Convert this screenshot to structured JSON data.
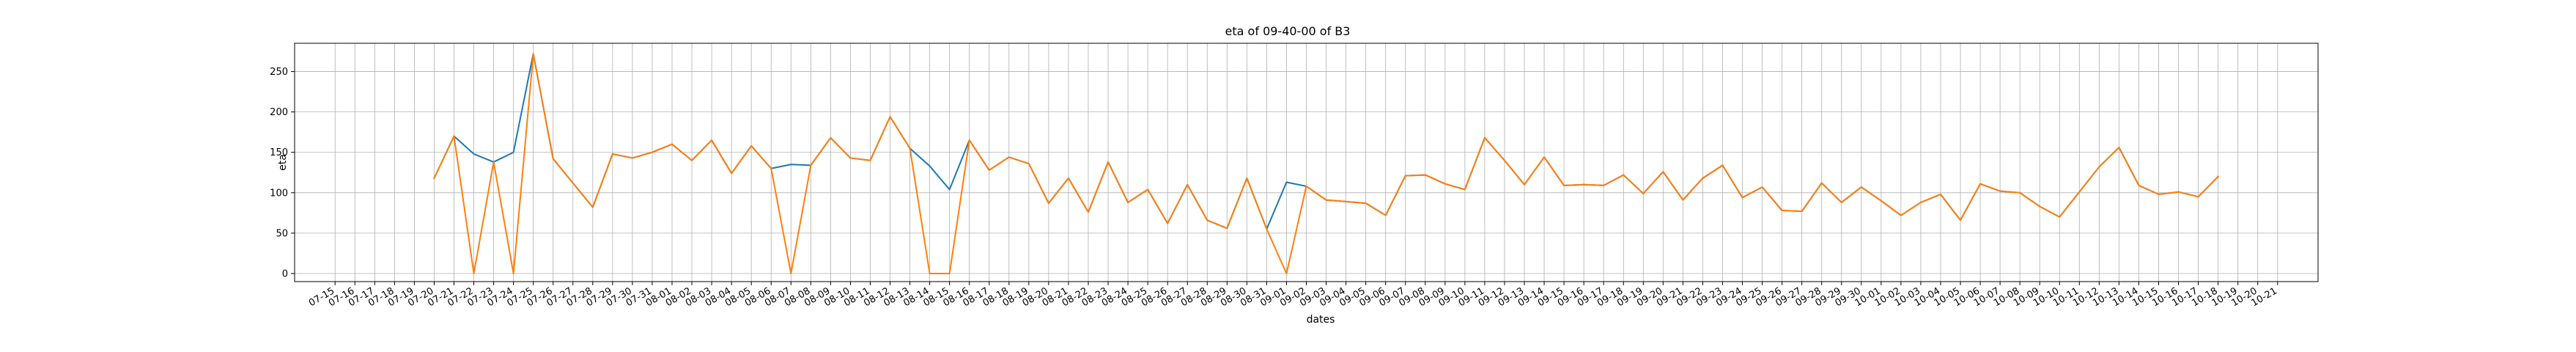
{
  "chart_data": {
    "type": "line",
    "title": "eta of 09-40-00 of B3",
    "xlabel": "dates",
    "ylabel": "eta",
    "ylim": [
      -10,
      285
    ],
    "yticks": [
      0,
      50,
      100,
      150,
      200,
      250
    ],
    "grid": true,
    "categories": [
      "07-15",
      "07-16",
      "07-17",
      "07-18",
      "07-19",
      "07-20",
      "07-21",
      "07-22",
      "07-23",
      "07-24",
      "07-25",
      "07-26",
      "07-27",
      "07-28",
      "07-29",
      "07-30",
      "07-31",
      "08-01",
      "08-02",
      "08-03",
      "08-04",
      "08-05",
      "08-06",
      "08-07",
      "08-08",
      "08-09",
      "08-10",
      "08-11",
      "08-12",
      "08-13",
      "08-14",
      "08-15",
      "08-16",
      "08-17",
      "08-18",
      "08-19",
      "08-20",
      "08-21",
      "08-22",
      "08-23",
      "08-24",
      "08-25",
      "08-26",
      "08-27",
      "08-28",
      "08-29",
      "08-30",
      "08-31",
      "09-01",
      "09-02",
      "09-03",
      "09-04",
      "09-05",
      "09-06",
      "09-07",
      "09-08",
      "09-09",
      "09-10",
      "09-11",
      "09-12",
      "09-13",
      "09-14",
      "09-15",
      "09-16",
      "09-17",
      "09-18",
      "09-19",
      "09-20",
      "09-21",
      "09-22",
      "09-23",
      "09-24",
      "09-25",
      "09-26",
      "09-27",
      "09-28",
      "09-29",
      "09-30",
      "10-01",
      "10-02",
      "10-03",
      "10-04",
      "10-05",
      "10-06",
      "10-07",
      "10-08",
      "10-09",
      "10-10",
      "10-11",
      "10-12",
      "10-13",
      "10-14",
      "10-15",
      "10-16",
      "10-17",
      "10-18",
      "10-19",
      "10-20",
      "10-21"
    ],
    "series": [
      {
        "color": "#1f77b4",
        "values": [
          null,
          null,
          null,
          null,
          null,
          118,
          170,
          148,
          138,
          150,
          272,
          142,
          112,
          82,
          148,
          143,
          150,
          160,
          140,
          165,
          124,
          158,
          130,
          135,
          134,
          168,
          143,
          140,
          194,
          155,
          133,
          104,
          165,
          128,
          144,
          136,
          87,
          118,
          76,
          138,
          88,
          104,
          62,
          110,
          66,
          56,
          118,
          55,
          113,
          108,
          91,
          89,
          87,
          72,
          121,
          122,
          111,
          104,
          168,
          140,
          110,
          144,
          109,
          110,
          109,
          122,
          99,
          126,
          91,
          118,
          134,
          94,
          107,
          78,
          77,
          112,
          88,
          107,
          90,
          72,
          88,
          98,
          66,
          111,
          102,
          100,
          83,
          70,
          101,
          132,
          156,
          109,
          98,
          101,
          95,
          120,
          null,
          null,
          null
        ]
      },
      {
        "color": "#ff7f0e",
        "values": [
          null,
          null,
          null,
          null,
          null,
          118,
          170,
          0,
          138,
          0,
          272,
          142,
          112,
          82,
          148,
          143,
          150,
          160,
          140,
          165,
          124,
          158,
          130,
          0,
          134,
          168,
          143,
          140,
          194,
          155,
          0,
          0,
          165,
          128,
          144,
          136,
          87,
          118,
          76,
          138,
          88,
          104,
          62,
          110,
          66,
          56,
          118,
          55,
          0,
          108,
          91,
          89,
          87,
          72,
          121,
          122,
          111,
          104,
          168,
          140,
          110,
          144,
          109,
          110,
          109,
          122,
          99,
          126,
          91,
          118,
          134,
          94,
          107,
          78,
          77,
          112,
          88,
          107,
          90,
          72,
          88,
          98,
          66,
          111,
          102,
          100,
          83,
          70,
          101,
          132,
          156,
          109,
          98,
          101,
          95,
          120,
          null,
          null,
          null
        ]
      }
    ]
  }
}
